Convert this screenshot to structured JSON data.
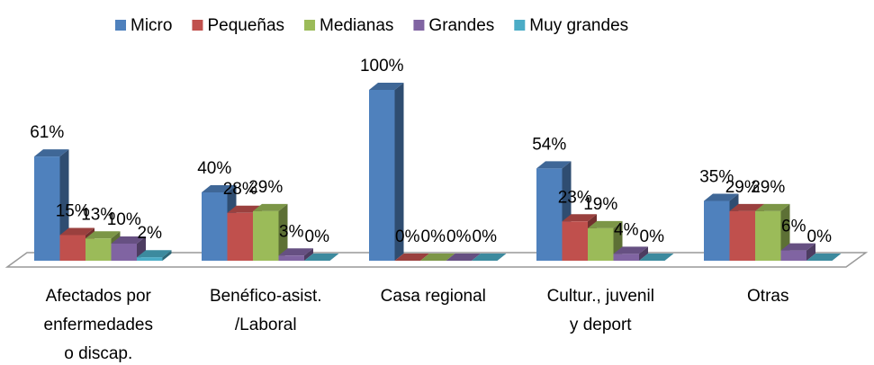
{
  "chart_data": {
    "type": "bar3d",
    "categories": [
      [
        "Afectados por",
        "enfermedades",
        "o discap."
      ],
      [
        "Benéfico-asist.",
        "/Laboral"
      ],
      [
        "Casa regional"
      ],
      [
        "Cultur., juvenil",
        "y deport"
      ],
      [
        "Otras"
      ]
    ],
    "series": [
      {
        "name": "Micro",
        "color": "#4f81bd",
        "values": [
          61,
          40,
          100,
          54,
          35
        ],
        "value_labels": [
          "61%",
          "40%",
          "100%",
          "54%",
          "35%"
        ]
      },
      {
        "name": "Pequeñas",
        "color": "#c0504d",
        "values": [
          15,
          28,
          0,
          23,
          29
        ],
        "value_labels": [
          "15%",
          "28%",
          "0%",
          "23%",
          "29%"
        ]
      },
      {
        "name": "Medianas",
        "color": "#9bbb59",
        "values": [
          13,
          29,
          0,
          19,
          29
        ],
        "value_labels": [
          "13%",
          "29%",
          "0%",
          "19%",
          "29%"
        ]
      },
      {
        "name": "Grandes",
        "color": "#8064a2",
        "values": [
          10,
          3,
          0,
          4,
          6
        ],
        "value_labels": [
          "10%",
          "3%",
          "0%",
          "4%",
          "6%"
        ]
      },
      {
        "name": "Muy grandes",
        "color": "#4bacc6",
        "values": [
          2,
          0,
          0,
          0,
          0
        ],
        "value_labels": [
          "2%",
          "0%",
          "0%",
          "0%",
          "0%"
        ]
      }
    ],
    "legend": "top"
  }
}
